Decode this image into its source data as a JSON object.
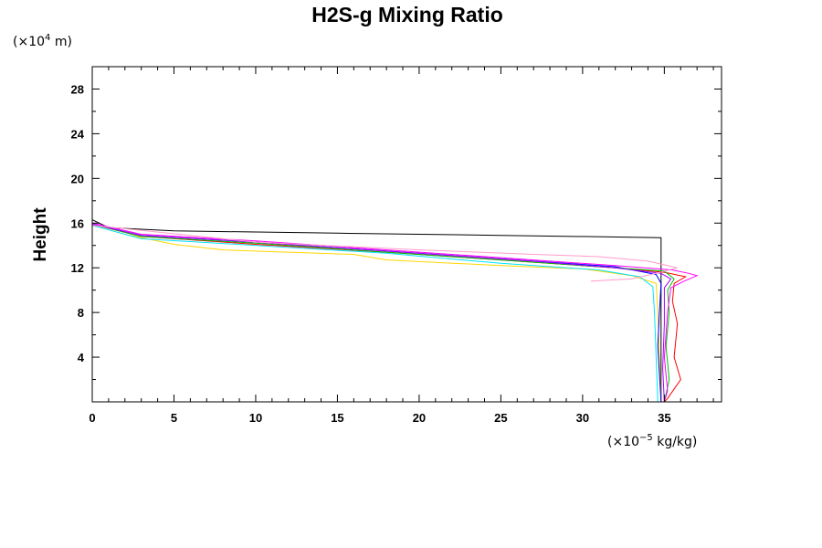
{
  "chart_data": {
    "type": "line",
    "title": "H2S-g Mixing Ratio",
    "ylabel": "Height",
    "y_unit": {
      "pre": "(×10",
      "exp": "4",
      "post": " m)"
    },
    "x_unit": {
      "pre": "(×10",
      "exp": "−5",
      "post": " kg/kg)"
    },
    "xlim": [
      0,
      38.5
    ],
    "ylim": [
      0,
      30
    ],
    "x_ticks": [
      0,
      5,
      10,
      15,
      20,
      25,
      30,
      35
    ],
    "y_ticks": [
      4,
      8,
      12,
      16,
      20,
      24,
      28
    ],
    "grid": false,
    "series": [
      {
        "color": "#000000",
        "points": [
          [
            0,
            30
          ],
          [
            0,
            16.3
          ],
          [
            1,
            15.6
          ],
          [
            5,
            15.3
          ],
          [
            15,
            15.1
          ],
          [
            25,
            14.9
          ],
          [
            34.8,
            14.7
          ],
          [
            34.8,
            0
          ]
        ]
      },
      {
        "color": "#ffd700",
        "points": [
          [
            0,
            30
          ],
          [
            0,
            15.8
          ],
          [
            2,
            15
          ],
          [
            5,
            14.1
          ],
          [
            8,
            13.6
          ],
          [
            12,
            13.4
          ],
          [
            16,
            13.2
          ],
          [
            18,
            12.7
          ],
          [
            25,
            12.2
          ],
          [
            30,
            11.9
          ],
          [
            33,
            11.3
          ],
          [
            34.5,
            10.6
          ],
          [
            34.6,
            8
          ],
          [
            34.7,
            4
          ],
          [
            34.8,
            0
          ]
        ]
      },
      {
        "color": "#00e5ff",
        "points": [
          [
            0,
            30
          ],
          [
            0,
            15.8
          ],
          [
            3,
            14.6
          ],
          [
            10,
            14
          ],
          [
            18,
            13.3
          ],
          [
            25,
            12.4
          ],
          [
            31,
            11.8
          ],
          [
            33.5,
            11.2
          ],
          [
            34.3,
            10.3
          ],
          [
            34.4,
            8
          ],
          [
            34.5,
            4
          ],
          [
            34.6,
            0
          ]
        ]
      },
      {
        "color": "#ff0000",
        "points": [
          [
            0,
            30
          ],
          [
            0,
            15.9
          ],
          [
            3,
            14.8
          ],
          [
            10,
            14.1
          ],
          [
            18,
            13.4
          ],
          [
            26,
            12.6
          ],
          [
            32,
            12
          ],
          [
            35,
            11.6
          ],
          [
            36.3,
            11.2
          ],
          [
            35.6,
            10.6
          ],
          [
            35.5,
            9
          ],
          [
            35.8,
            7
          ],
          [
            35.6,
            4
          ],
          [
            36,
            2
          ],
          [
            35.2,
            0.3
          ],
          [
            35,
            0
          ]
        ]
      },
      {
        "color": "#0000ff",
        "points": [
          [
            0,
            30
          ],
          [
            0,
            15.9
          ],
          [
            3,
            14.9
          ],
          [
            10,
            14.3
          ],
          [
            18,
            13.5
          ],
          [
            26,
            12.7
          ],
          [
            32,
            12.1
          ],
          [
            34.5,
            11.4
          ],
          [
            34.8,
            10.6
          ],
          [
            34.7,
            8
          ],
          [
            34.6,
            5
          ],
          [
            34.8,
            0
          ]
        ]
      },
      {
        "color": "#00c000",
        "points": [
          [
            0,
            30
          ],
          [
            0,
            15.9
          ],
          [
            3,
            14.8
          ],
          [
            10,
            14.2
          ],
          [
            18,
            13.4
          ],
          [
            26,
            12.6
          ],
          [
            32,
            12
          ],
          [
            35,
            11.7
          ],
          [
            35.6,
            11
          ],
          [
            35.2,
            10
          ],
          [
            35.3,
            8
          ],
          [
            35.1,
            5
          ],
          [
            35.3,
            2
          ],
          [
            35,
            0
          ]
        ]
      },
      {
        "color": "#ff00ff",
        "points": [
          [
            0,
            30
          ],
          [
            0,
            16
          ],
          [
            3,
            15
          ],
          [
            10,
            14.4
          ],
          [
            18,
            13.6
          ],
          [
            26,
            12.8
          ],
          [
            32,
            12.2
          ],
          [
            35.5,
            11.8
          ],
          [
            36.5,
            11.5
          ],
          [
            37,
            11.3
          ],
          [
            36.2,
            10.8
          ],
          [
            35.4,
            10.2
          ],
          [
            35.2,
            8
          ],
          [
            35,
            4
          ],
          [
            35.2,
            1
          ],
          [
            35,
            0
          ]
        ]
      },
      {
        "color": "#a000ff",
        "points": [
          [
            0,
            30
          ],
          [
            0,
            15.9
          ],
          [
            3,
            14.9
          ],
          [
            10,
            14.3
          ],
          [
            18,
            13.5
          ],
          [
            26,
            12.7
          ],
          [
            32,
            12
          ],
          [
            34.8,
            11.5
          ],
          [
            35.4,
            11
          ],
          [
            35,
            10.2
          ],
          [
            35,
            7
          ],
          [
            34.9,
            3
          ],
          [
            35,
            0
          ]
        ]
      },
      {
        "color": "#ff9cc8",
        "points": [
          [
            0,
            30
          ],
          [
            0,
            15.8
          ],
          [
            10,
            14.3
          ],
          [
            20,
            13.6
          ],
          [
            27,
            13.2
          ],
          [
            31,
            13
          ],
          [
            34,
            12.6
          ],
          [
            35.8,
            12
          ],
          [
            34.5,
            11.5
          ],
          [
            33,
            11
          ],
          [
            31.5,
            10.9
          ],
          [
            30.5,
            10.8
          ]
        ]
      }
    ]
  }
}
